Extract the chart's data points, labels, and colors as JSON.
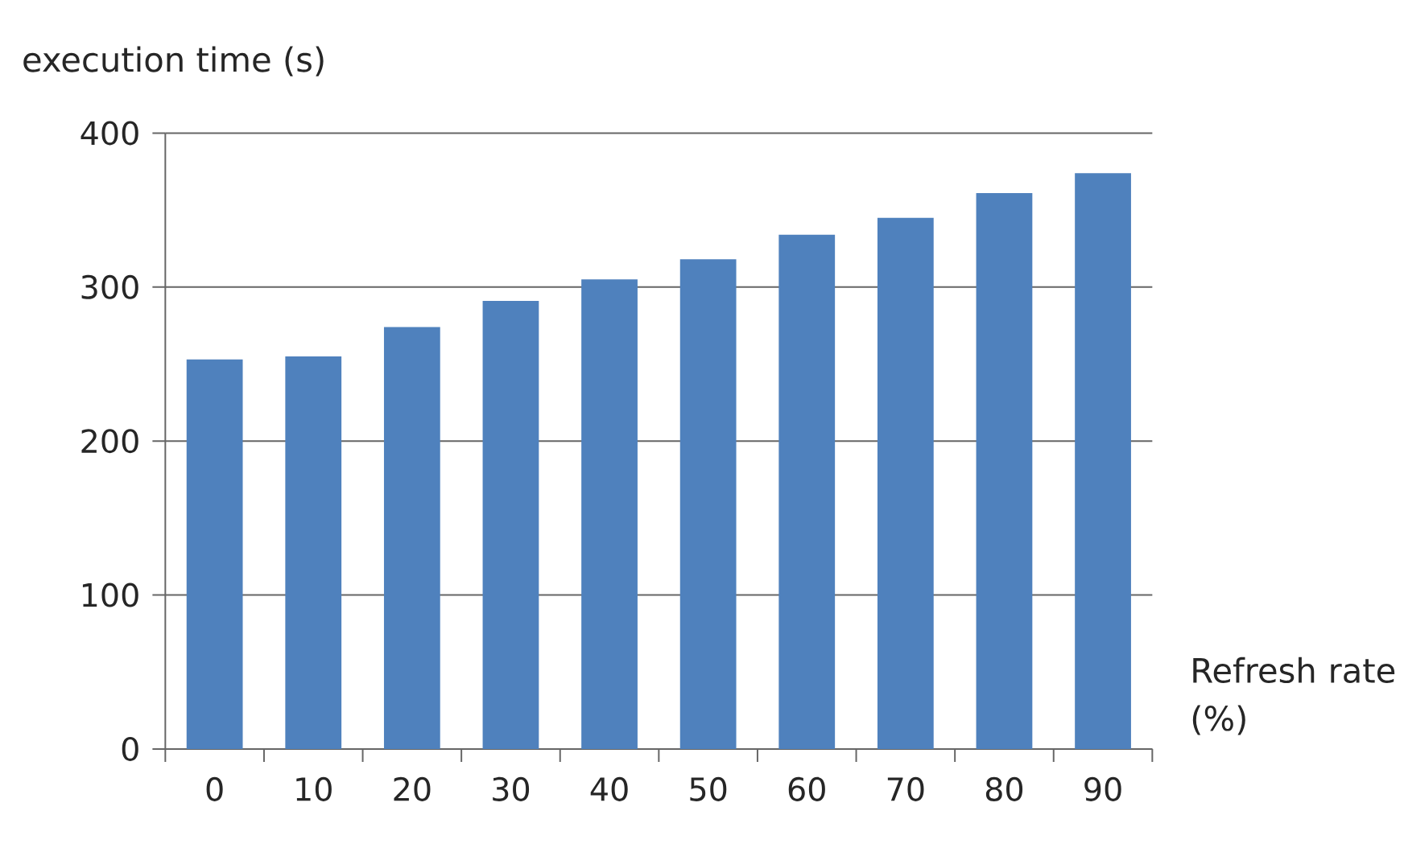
{
  "chart_data": {
    "type": "bar",
    "title": "execution time (s)",
    "xlabel": "Refresh rate (%)",
    "categories": [
      "0",
      "10",
      "20",
      "30",
      "40",
      "50",
      "60",
      "70",
      "80",
      "90"
    ],
    "values": [
      253,
      255,
      274,
      291,
      305,
      318,
      334,
      345,
      361,
      374
    ],
    "color": "#4f81bd",
    "ylim": [
      0,
      400
    ],
    "yticks": [
      0,
      100,
      200,
      300,
      400
    ],
    "grid": "y"
  }
}
